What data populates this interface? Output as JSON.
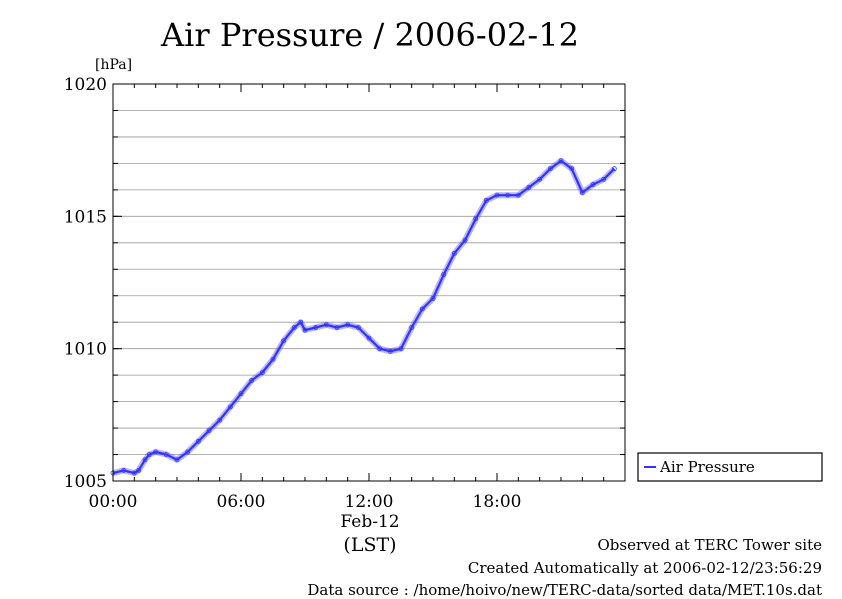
{
  "chart_data": {
    "type": "line",
    "title": "Air Pressure / 2006-02-12",
    "y_unit": "[hPa]",
    "ylim": [
      1005,
      1020
    ],
    "y_ticks": [
      1005,
      1010,
      1015,
      1020
    ],
    "y_tick_labels": [
      "1005",
      "1010",
      "1015",
      "1020"
    ],
    "xlim": [
      0,
      24
    ],
    "x_ticks": [
      0,
      6,
      12,
      18
    ],
    "x_tick_labels": [
      "00:00",
      "06:00",
      "12:00",
      "18:00"
    ],
    "date_label": "Feb-12",
    "xlabel": "(LST)",
    "grid": true,
    "legend_position": "right",
    "series": [
      {
        "name": "Air Pressure",
        "color": "#3333ff",
        "x": [
          0,
          0.5,
          1,
          1.2,
          1.5,
          1.7,
          2,
          2.5,
          3,
          3.5,
          4,
          4.5,
          5,
          5.5,
          6,
          6.5,
          7,
          7.5,
          8,
          8.5,
          8.8,
          9,
          9.5,
          10,
          10.5,
          11,
          11.5,
          12,
          12.5,
          13,
          13.5,
          14,
          14.5,
          15,
          15.5,
          16,
          16.5,
          17,
          17.5,
          18,
          18.5,
          19,
          19.5,
          20,
          20.5,
          21,
          21.5,
          22,
          22.5,
          23,
          23.5
        ],
        "values": [
          1005.3,
          1005.4,
          1005.3,
          1005.4,
          1005.8,
          1006.0,
          1006.1,
          1006.0,
          1005.8,
          1006.1,
          1006.5,
          1006.9,
          1007.3,
          1007.8,
          1008.3,
          1008.8,
          1009.1,
          1009.6,
          1010.3,
          1010.8,
          1011.0,
          1010.7,
          1010.8,
          1010.9,
          1010.8,
          1010.9,
          1010.8,
          1010.4,
          1010.0,
          1009.9,
          1010.0,
          1010.8,
          1011.5,
          1011.9,
          1012.8,
          1013.6,
          1014.1,
          1014.9,
          1015.6,
          1015.8,
          1015.8,
          1015.8,
          1016.1,
          1016.4,
          1016.8,
          1017.1,
          1016.8,
          1015.9,
          1016.2,
          1016.4,
          1016.8
        ]
      }
    ]
  },
  "footer": {
    "line1": "Observed at TERC Tower site",
    "line2": "Created Automatically at 2006-02-12/23:56:29",
    "line3": "Data source : /home/hoivo/new/TERC-data/sorted  data/MET.10s.dat"
  }
}
